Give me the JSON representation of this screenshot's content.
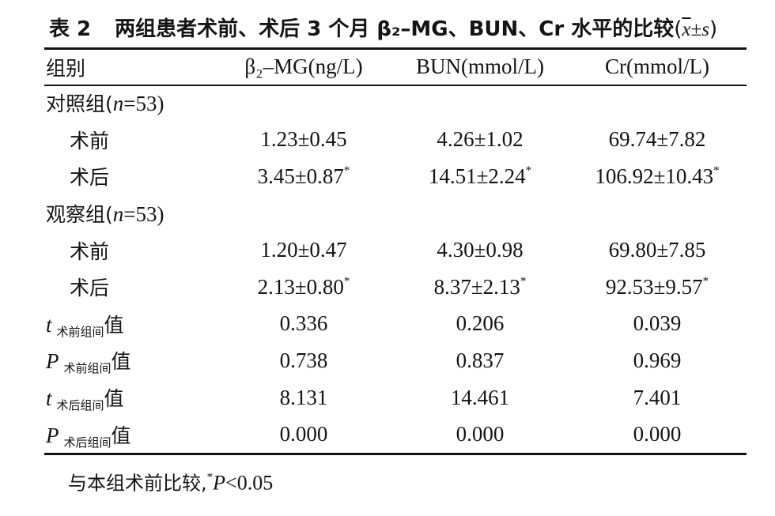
{
  "title": {
    "label": "表 2",
    "text": "两组患者术前、术后 3 个月 β₂–MG、BUN、Cr 水平的比较",
    "paren_open": "(",
    "stat_xbar": "x",
    "stat_rest": "±s",
    "paren_close": ")"
  },
  "table": {
    "headers": [
      "组别",
      "β₂–MG(ng/L)",
      "BUN(mmol/L)",
      "Cr(mmol/L)"
    ],
    "groups": [
      {
        "name": "对照组(",
        "n_var": "n",
        "n_val": "=53)",
        "rows": [
          {
            "label": "术前",
            "cells": [
              "1.23±0.45",
              "4.26±1.02",
              "69.74±7.82"
            ],
            "marks": [
              "",
              "",
              ""
            ]
          },
          {
            "label": "术后",
            "cells": [
              "3.45±0.87",
              "14.51±2.24",
              "106.92±10.43"
            ],
            "marks": [
              "*",
              "*",
              "*"
            ]
          }
        ]
      },
      {
        "name": "观察组(",
        "n_var": "n",
        "n_val": "=53)",
        "rows": [
          {
            "label": "术前",
            "cells": [
              "1.20±0.47",
              "4.30±0.98",
              "69.80±7.85"
            ],
            "marks": [
              "",
              "",
              ""
            ]
          },
          {
            "label": "术后",
            "cells": [
              "2.13±0.80",
              "8.37±2.13",
              "92.53±9.57"
            ],
            "marks": [
              "*",
              "*",
              "*"
            ]
          }
        ]
      }
    ],
    "stats": [
      {
        "symbol": "t",
        "sub": "术前组间",
        "suffix": "值",
        "cells": [
          "0.336",
          "0.206",
          "0.039"
        ]
      },
      {
        "symbol": "P",
        "sub": "术前组间",
        "suffix": "值",
        "cells": [
          "0.738",
          "0.837",
          "0.969"
        ]
      },
      {
        "symbol": "t",
        "sub": "术后组间",
        "suffix": "值",
        "cells": [
          "8.131",
          "14.461",
          "7.401"
        ]
      },
      {
        "symbol": "P",
        "sub": "术后组间",
        "suffix": "值",
        "cells": [
          "0.000",
          "0.000",
          "0.000"
        ]
      }
    ]
  },
  "footnote": {
    "text": "与本组术前比较,",
    "mark": "*",
    "p_symbol": "P",
    "p_value": "<0.05"
  }
}
